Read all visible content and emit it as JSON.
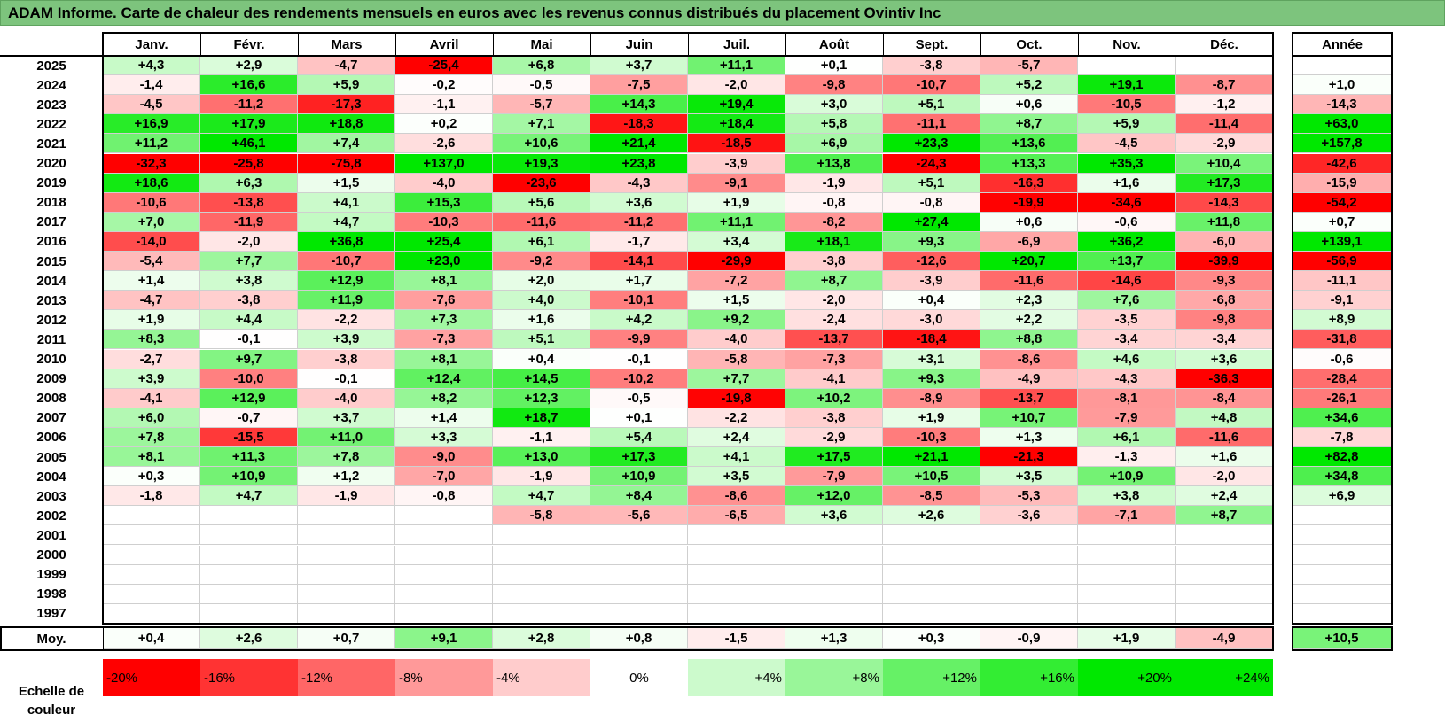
{
  "title": "ADAM Informe. Carte de chaleur des rendements mensuels en euros avec les revenus connus distribués du placement Ovintiv Inc",
  "colors": {
    "title_bg": "#7dc47d",
    "neg_strong": "#ff0000",
    "pos_strong": "#00e800",
    "neutral": "#ffffff"
  },
  "chart_data": {
    "type": "heatmap",
    "title": "ADAM Informe. Carte de chaleur des rendements mensuels en euros avec les revenus connus distribués du placement Ovintiv Inc",
    "columns": [
      "Janv.",
      "Févr.",
      "Mars",
      "Avril",
      "Mai",
      "Juin",
      "Juil.",
      "Août",
      "Sept.",
      "Oct.",
      "Nov.",
      "Déc."
    ],
    "year_header": "Année",
    "rows": [
      {
        "year": "2025",
        "values": [
          "+4,3",
          "+2,9",
          "-4,7",
          "-25,4",
          "+6,8",
          "+3,7",
          "+11,1",
          "+0,1",
          "-3,8",
          "-5,7",
          "",
          ""
        ],
        "annual": ""
      },
      {
        "year": "2024",
        "values": [
          "-1,4",
          "+16,6",
          "+5,9",
          "-0,2",
          "-0,5",
          "-7,5",
          "-2,0",
          "-9,8",
          "-10,7",
          "+5,2",
          "+19,1",
          "-8,7"
        ],
        "annual": "+1,0"
      },
      {
        "year": "2023",
        "values": [
          "-4,5",
          "-11,2",
          "-17,3",
          "-1,1",
          "-5,7",
          "+14,3",
          "+19,4",
          "+3,0",
          "+5,1",
          "+0,6",
          "-10,5",
          "-1,2"
        ],
        "annual": "-14,3"
      },
      {
        "year": "2022",
        "values": [
          "+16,9",
          "+17,9",
          "+18,8",
          "+0,2",
          "+7,1",
          "-18,3",
          "+18,4",
          "+5,8",
          "-11,1",
          "+8,7",
          "+5,9",
          "-11,4"
        ],
        "annual": "+63,0"
      },
      {
        "year": "2021",
        "values": [
          "+11,2",
          "+46,1",
          "+7,4",
          "-2,6",
          "+10,6",
          "+21,4",
          "-18,5",
          "+6,9",
          "+23,3",
          "+13,6",
          "-4,5",
          "-2,9"
        ],
        "annual": "+157,8"
      },
      {
        "year": "2020",
        "values": [
          "-32,3",
          "-25,8",
          "-75,8",
          "+137,0",
          "+19,3",
          "+23,8",
          "-3,9",
          "+13,8",
          "-24,3",
          "+13,3",
          "+35,3",
          "+10,4"
        ],
        "annual": "-42,6"
      },
      {
        "year": "2019",
        "values": [
          "+18,6",
          "+6,3",
          "+1,5",
          "-4,0",
          "-23,6",
          "-4,3",
          "-9,1",
          "-1,9",
          "+5,1",
          "-16,3",
          "+1,6",
          "+17,3"
        ],
        "annual": "-15,9"
      },
      {
        "year": "2018",
        "values": [
          "-10,6",
          "-13,8",
          "+4,1",
          "+15,3",
          "+5,6",
          "+3,6",
          "+1,9",
          "-0,8",
          "-0,8",
          "-19,9",
          "-34,6",
          "-14,3"
        ],
        "annual": "-54,2"
      },
      {
        "year": "2017",
        "values": [
          "+7,0",
          "-11,9",
          "+4,7",
          "-10,3",
          "-11,6",
          "-11,2",
          "+11,1",
          "-8,2",
          "+27,4",
          "+0,6",
          "-0,6",
          "+11,8"
        ],
        "annual": "+0,7"
      },
      {
        "year": "2016",
        "values": [
          "-14,0",
          "-2,0",
          "+36,8",
          "+25,4",
          "+6,1",
          "-1,7",
          "+3,4",
          "+18,1",
          "+9,3",
          "-6,9",
          "+36,2",
          "-6,0"
        ],
        "annual": "+139,1"
      },
      {
        "year": "2015",
        "values": [
          "-5,4",
          "+7,7",
          "-10,7",
          "+23,0",
          "-9,2",
          "-14,1",
          "-29,9",
          "-3,8",
          "-12,6",
          "+20,7",
          "+13,7",
          "-39,9"
        ],
        "annual": "-56,9"
      },
      {
        "year": "2014",
        "values": [
          "+1,4",
          "+3,8",
          "+12,9",
          "+8,1",
          "+2,0",
          "+1,7",
          "-7,2",
          "+8,7",
          "-3,9",
          "-11,6",
          "-14,6",
          "-9,3"
        ],
        "annual": "-11,1"
      },
      {
        "year": "2013",
        "values": [
          "-4,7",
          "-3,8",
          "+11,9",
          "-7,6",
          "+4,0",
          "-10,1",
          "+1,5",
          "-2,0",
          "+0,4",
          "+2,3",
          "+7,6",
          "-6,8"
        ],
        "annual": "-9,1"
      },
      {
        "year": "2012",
        "values": [
          "+1,9",
          "+4,4",
          "-2,2",
          "+7,3",
          "+1,6",
          "+4,2",
          "+9,2",
          "-2,4",
          "-3,0",
          "+2,2",
          "-3,5",
          "-9,8"
        ],
        "annual": "+8,9"
      },
      {
        "year": "2011",
        "values": [
          "+8,3",
          "-0,1",
          "+3,9",
          "-7,3",
          "+5,1",
          "-9,9",
          "-4,0",
          "-13,7",
          "-18,4",
          "+8,8",
          "-3,4",
          "-3,4"
        ],
        "annual": "-31,8"
      },
      {
        "year": "2010",
        "values": [
          "-2,7",
          "+9,7",
          "-3,8",
          "+8,1",
          "+0,4",
          "-0,1",
          "-5,8",
          "-7,3",
          "+3,1",
          "-8,6",
          "+4,6",
          "+3,6"
        ],
        "annual": "-0,6"
      },
      {
        "year": "2009",
        "values": [
          "+3,9",
          "-10,0",
          "-0,1",
          "+12,4",
          "+14,5",
          "-10,2",
          "+7,7",
          "-4,1",
          "+9,3",
          "-4,9",
          "-4,3",
          "-36,3"
        ],
        "annual": "-28,4"
      },
      {
        "year": "2008",
        "values": [
          "-4,1",
          "+12,9",
          "-4,0",
          "+8,2",
          "+12,3",
          "-0,5",
          "-19,8",
          "+10,2",
          "-8,9",
          "-13,7",
          "-8,1",
          "-8,4"
        ],
        "annual": "-26,1"
      },
      {
        "year": "2007",
        "values": [
          "+6,0",
          "-0,7",
          "+3,7",
          "+1,4",
          "+18,7",
          "+0,1",
          "-2,2",
          "-3,8",
          "+1,9",
          "+10,7",
          "-7,9",
          "+4,8"
        ],
        "annual": "+34,6"
      },
      {
        "year": "2006",
        "values": [
          "+7,8",
          "-15,5",
          "+11,0",
          "+3,3",
          "-1,1",
          "+5,4",
          "+2,4",
          "-2,9",
          "-10,3",
          "+1,3",
          "+6,1",
          "-11,6"
        ],
        "annual": "-7,8"
      },
      {
        "year": "2005",
        "values": [
          "+8,1",
          "+11,3",
          "+7,8",
          "-9,0",
          "+13,0",
          "+17,3",
          "+4,1",
          "+17,5",
          "+21,1",
          "-21,3",
          "-1,3",
          "+1,6"
        ],
        "annual": "+82,8"
      },
      {
        "year": "2004",
        "values": [
          "+0,3",
          "+10,9",
          "+1,2",
          "-7,0",
          "-1,9",
          "+10,9",
          "+3,5",
          "-7,9",
          "+10,5",
          "+3,5",
          "+10,9",
          "-2,0"
        ],
        "annual": "+34,8"
      },
      {
        "year": "2003",
        "values": [
          "-1,8",
          "+4,7",
          "-1,9",
          "-0,8",
          "+4,7",
          "+8,4",
          "-8,6",
          "+12,0",
          "-8,5",
          "-5,3",
          "+3,8",
          "+2,4"
        ],
        "annual": "+6,9"
      },
      {
        "year": "2002",
        "values": [
          "",
          "",
          "",
          "",
          "-5,8",
          "-5,6",
          "-6,5",
          "+3,6",
          "+2,6",
          "-3,6",
          "-7,1",
          "+8,7"
        ],
        "annual": ""
      },
      {
        "year": "2001",
        "values": [
          "",
          "",
          "",
          "",
          "",
          "",
          "",
          "",
          "",
          "",
          "",
          ""
        ],
        "annual": ""
      },
      {
        "year": "2000",
        "values": [
          "",
          "",
          "",
          "",
          "",
          "",
          "",
          "",
          "",
          "",
          "",
          ""
        ],
        "annual": ""
      },
      {
        "year": "1999",
        "values": [
          "",
          "",
          "",
          "",
          "",
          "",
          "",
          "",
          "",
          "",
          "",
          ""
        ],
        "annual": ""
      },
      {
        "year": "1998",
        "values": [
          "",
          "",
          "",
          "",
          "",
          "",
          "",
          "",
          "",
          "",
          "",
          ""
        ],
        "annual": ""
      },
      {
        "year": "1997",
        "values": [
          "",
          "",
          "",
          "",
          "",
          "",
          "",
          "",
          "",
          "",
          "",
          ""
        ],
        "annual": ""
      }
    ],
    "average": {
      "label": "Moy.",
      "values": [
        "+0,4",
        "+2,6",
        "+0,7",
        "+9,1",
        "+2,8",
        "+0,8",
        "-1,5",
        "+1,3",
        "+0,3",
        "-0,9",
        "+1,9",
        "-4,9"
      ],
      "annual": "+10,5"
    },
    "scale": {
      "label": "Echelle de couleur",
      "stops": [
        "-20%",
        "-16%",
        "-12%",
        "-8%",
        "-4%",
        "0%",
        "+4%",
        "+8%",
        "+12%",
        "+16%",
        "+20%",
        "+24%"
      ]
    }
  }
}
